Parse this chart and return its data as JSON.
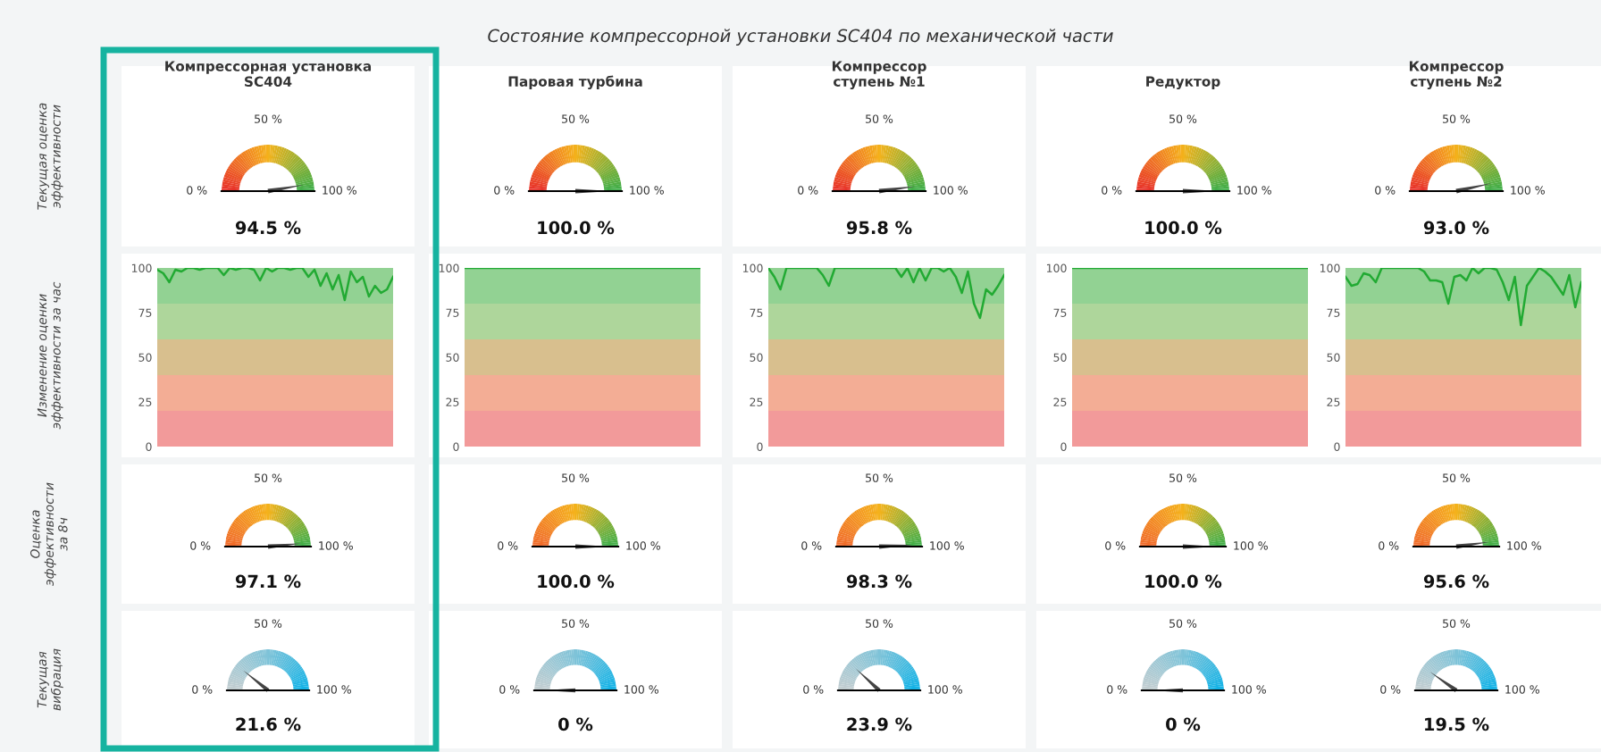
{
  "chart_data": [
    {
      "type": "other",
      "title": "Состояние компрессорной установки SC404 по механической части"
    },
    {
      "type": "other",
      "title": "Компрессорная установка\nSC404",
      "ylabel": "Текущая оценка\nэффективности",
      "values": [
        94.5
      ],
      "value_labels": [
        "94.5 %"
      ],
      "annotations": [
        "0 %",
        "50 %",
        "100 %"
      ]
    },
    {
      "type": "other",
      "title": "Паровая турбина",
      "values": [
        100.0
      ],
      "value_labels": [
        "100.0 %"
      ],
      "annotations": [
        "0 %",
        "50 %",
        "100 %"
      ]
    },
    {
      "type": "other",
      "title": "Компрессор\nступень №1",
      "values": [
        95.8
      ],
      "value_labels": [
        "95.8 %"
      ],
      "annotations": [
        "0 %",
        "50 %",
        "100 %"
      ]
    },
    {
      "type": "other",
      "title": "Редуктор",
      "values": [
        100.0
      ],
      "value_labels": [
        "100.0 %"
      ],
      "annotations": [
        "0 %",
        "50 %",
        "100 %"
      ]
    },
    {
      "type": "other",
      "title": "Компрессор\nступень №2",
      "values": [
        93.0
      ],
      "value_labels": [
        "93.0 %"
      ],
      "annotations": [
        "0 %",
        "50 %",
        "100 %"
      ]
    },
    {
      "type": "line",
      "ylabel": "Изменение оценки\nэффективности за час",
      "categories": [
        null,
        null,
        null,
        null,
        null,
        null,
        null,
        null,
        null,
        null,
        null,
        null,
        null,
        null,
        null,
        null,
        null,
        null,
        null,
        null,
        null,
        null,
        null,
        null,
        null,
        null,
        null,
        null,
        null,
        null,
        null,
        null,
        null,
        null,
        null,
        null,
        null,
        null,
        null,
        null
      ],
      "series": [
        {
          "color": "#22aa33",
          "values": [
            99,
            97,
            92,
            99,
            98,
            100,
            100,
            99,
            100,
            100,
            100,
            96,
            100,
            99,
            100,
            100,
            99,
            93,
            100,
            98,
            100,
            100,
            99,
            100,
            100,
            95,
            99,
            90,
            97,
            88,
            96,
            82,
            98,
            92,
            95,
            84,
            90,
            86,
            88,
            95
          ]
        }
      ],
      "ylim": [
        0,
        100
      ],
      "yticks": [
        0,
        25,
        50,
        75,
        100
      ],
      "bands": [
        {
          "axis": "y",
          "from": 0,
          "to": 20,
          "color": "#f29a9a"
        },
        {
          "axis": "y",
          "from": 20,
          "to": 40,
          "color": "#f3ad95"
        },
        {
          "axis": "y",
          "from": 40,
          "to": 60,
          "color": "#d8bf8e"
        },
        {
          "axis": "y",
          "from": 60,
          "to": 80,
          "color": "#aed69b"
        },
        {
          "axis": "y",
          "from": 80,
          "to": 100,
          "color": "#92d293"
        }
      ]
    },
    {
      "type": "line",
      "categories": [
        null,
        null,
        null,
        null,
        null,
        null,
        null,
        null,
        null,
        null,
        null,
        null,
        null,
        null,
        null,
        null,
        null,
        null,
        null,
        null,
        null,
        null,
        null,
        null,
        null,
        null,
        null,
        null,
        null,
        null,
        null,
        null,
        null,
        null,
        null,
        null,
        null,
        null,
        null,
        null
      ],
      "series": [
        {
          "color": "#22aa33",
          "values": [
            100,
            100,
            100,
            100,
            100,
            100,
            100,
            100,
            100,
            100,
            100,
            100,
            100,
            100,
            100,
            100,
            100,
            100,
            100,
            100,
            100,
            100,
            100,
            100,
            100,
            100,
            100,
            100,
            100,
            100,
            100,
            100,
            100,
            100,
            100,
            100,
            100,
            100,
            100,
            100
          ]
        }
      ],
      "ylim": [
        0,
        100
      ],
      "yticks": [
        0,
        25,
        50,
        75,
        100
      ],
      "bands": [
        {
          "axis": "y",
          "from": 0,
          "to": 20,
          "color": "#f29a9a"
        },
        {
          "axis": "y",
          "from": 20,
          "to": 40,
          "color": "#f3ad95"
        },
        {
          "axis": "y",
          "from": 40,
          "to": 60,
          "color": "#d8bf8e"
        },
        {
          "axis": "y",
          "from": 60,
          "to": 80,
          "color": "#aed69b"
        },
        {
          "axis": "y",
          "from": 80,
          "to": 100,
          "color": "#92d293"
        }
      ]
    },
    {
      "type": "line",
      "categories": [
        null,
        null,
        null,
        null,
        null,
        null,
        null,
        null,
        null,
        null,
        null,
        null,
        null,
        null,
        null,
        null,
        null,
        null,
        null,
        null,
        null,
        null,
        null,
        null,
        null,
        null,
        null,
        null,
        null,
        null,
        null,
        null,
        null,
        null,
        null,
        null,
        null,
        null,
        null,
        null
      ],
      "series": [
        {
          "color": "#22aa33",
          "values": [
            100,
            95,
            88,
            100,
            100,
            100,
            100,
            100,
            100,
            96,
            90,
            100,
            100,
            100,
            100,
            100,
            100,
            100,
            100,
            100,
            100,
            100,
            95,
            100,
            92,
            100,
            93,
            100,
            100,
            98,
            100,
            95,
            86,
            98,
            80,
            72,
            88,
            85,
            90,
            96
          ]
        }
      ],
      "ylim": [
        0,
        100
      ],
      "yticks": [
        0,
        25,
        50,
        75,
        100
      ],
      "bands": [
        {
          "axis": "y",
          "from": 0,
          "to": 20,
          "color": "#f29a9a"
        },
        {
          "axis": "y",
          "from": 20,
          "to": 40,
          "color": "#f3ad95"
        },
        {
          "axis": "y",
          "from": 40,
          "to": 60,
          "color": "#d8bf8e"
        },
        {
          "axis": "y",
          "from": 60,
          "to": 80,
          "color": "#aed69b"
        },
        {
          "axis": "y",
          "from": 80,
          "to": 100,
          "color": "#92d293"
        }
      ]
    },
    {
      "type": "line",
      "categories": [
        null,
        null,
        null,
        null,
        null,
        null,
        null,
        null,
        null,
        null,
        null,
        null,
        null,
        null,
        null,
        null,
        null,
        null,
        null,
        null,
        null,
        null,
        null,
        null,
        null,
        null,
        null,
        null,
        null,
        null,
        null,
        null,
        null,
        null,
        null,
        null,
        null,
        null,
        null,
        null
      ],
      "series": [
        {
          "color": "#22aa33",
          "values": [
            100,
            100,
            100,
            100,
            100,
            100,
            100,
            100,
            100,
            100,
            100,
            100,
            100,
            100,
            100,
            100,
            100,
            100,
            100,
            100,
            100,
            100,
            100,
            100,
            100,
            100,
            100,
            100,
            100,
            100,
            100,
            100,
            100,
            100,
            100,
            100,
            100,
            100,
            100,
            100
          ]
        }
      ],
      "ylim": [
        0,
        100
      ],
      "yticks": [
        0,
        25,
        50,
        75,
        100
      ],
      "bands": [
        {
          "axis": "y",
          "from": 0,
          "to": 20,
          "color": "#f29a9a"
        },
        {
          "axis": "y",
          "from": 20,
          "to": 40,
          "color": "#f3ad95"
        },
        {
          "axis": "y",
          "from": 40,
          "to": 60,
          "color": "#d8bf8e"
        },
        {
          "axis": "y",
          "from": 60,
          "to": 80,
          "color": "#aed69b"
        },
        {
          "axis": "y",
          "from": 80,
          "to": 100,
          "color": "#92d293"
        }
      ]
    },
    {
      "type": "line",
      "categories": [
        null,
        null,
        null,
        null,
        null,
        null,
        null,
        null,
        null,
        null,
        null,
        null,
        null,
        null,
        null,
        null,
        null,
        null,
        null,
        null,
        null,
        null,
        null,
        null,
        null,
        null,
        null,
        null,
        null,
        null,
        null,
        null,
        null,
        null,
        null,
        null,
        null,
        null,
        null,
        null
      ],
      "series": [
        {
          "color": "#22aa33",
          "values": [
            95,
            90,
            91,
            97,
            96,
            92,
            100,
            100,
            100,
            100,
            100,
            100,
            100,
            98,
            93,
            93,
            92,
            80,
            95,
            96,
            93,
            100,
            97,
            100,
            100,
            99,
            92,
            82,
            95,
            68,
            90,
            95,
            100,
            98,
            95,
            90,
            85,
            96,
            78,
            92
          ]
        }
      ],
      "ylim": [
        0,
        100
      ],
      "yticks": [
        0,
        25,
        50,
        75,
        100
      ],
      "bands": [
        {
          "axis": "y",
          "from": 0,
          "to": 20,
          "color": "#f29a9a"
        },
        {
          "axis": "y",
          "from": 20,
          "to": 40,
          "color": "#f3ad95"
        },
        {
          "axis": "y",
          "from": 40,
          "to": 60,
          "color": "#d8bf8e"
        },
        {
          "axis": "y",
          "from": 60,
          "to": 80,
          "color": "#aed69b"
        },
        {
          "axis": "y",
          "from": 80,
          "to": 100,
          "color": "#92d293"
        }
      ]
    },
    {
      "type": "other",
      "ylabel": "Оценка\nэффективности\nза 8ч",
      "values": [
        97.1
      ],
      "value_labels": [
        "97.1 %"
      ],
      "annotations": [
        "0 %",
        "50 %",
        "100 %"
      ]
    },
    {
      "type": "other",
      "values": [
        100.0
      ],
      "value_labels": [
        "100.0 %"
      ],
      "annotations": [
        "0 %",
        "50 %",
        "100 %"
      ]
    },
    {
      "type": "other",
      "values": [
        98.3
      ],
      "value_labels": [
        "98.3 %"
      ],
      "annotations": [
        "0 %",
        "50 %",
        "100 %"
      ]
    },
    {
      "type": "other",
      "values": [
        100.0
      ],
      "value_labels": [
        "100.0 %"
      ],
      "annotations": [
        "0 %",
        "50 %",
        "100 %"
      ]
    },
    {
      "type": "other",
      "values": [
        95.6
      ],
      "value_labels": [
        "95.6 %"
      ],
      "annotations": [
        "0 %",
        "50 %",
        "100 %"
      ]
    },
    {
      "type": "other",
      "ylabel": "Текущая\nвибрация",
      "values": [
        21.6
      ],
      "value_labels": [
        "21.6 %"
      ],
      "annotations": [
        "0 %",
        "50 %",
        "100 %"
      ]
    },
    {
      "type": "other",
      "values": [
        0
      ],
      "value_labels": [
        "0 %"
      ],
      "annotations": [
        "0 %",
        "50 %",
        "100 %"
      ]
    },
    {
      "type": "other",
      "values": [
        23.9
      ],
      "value_labels": [
        "23.9 %"
      ],
      "annotations": [
        "0 %",
        "50 %",
        "100 %"
      ]
    },
    {
      "type": "other",
      "values": [
        0
      ],
      "value_labels": [
        "0 %"
      ],
      "annotations": [
        "0 %",
        "50 %",
        "100 %"
      ]
    },
    {
      "type": "other",
      "values": [
        19.5
      ],
      "value_labels": [
        "19.5 %"
      ],
      "annotations": [
        "0 %",
        "50 %",
        "100 %"
      ]
    }
  ]
}
